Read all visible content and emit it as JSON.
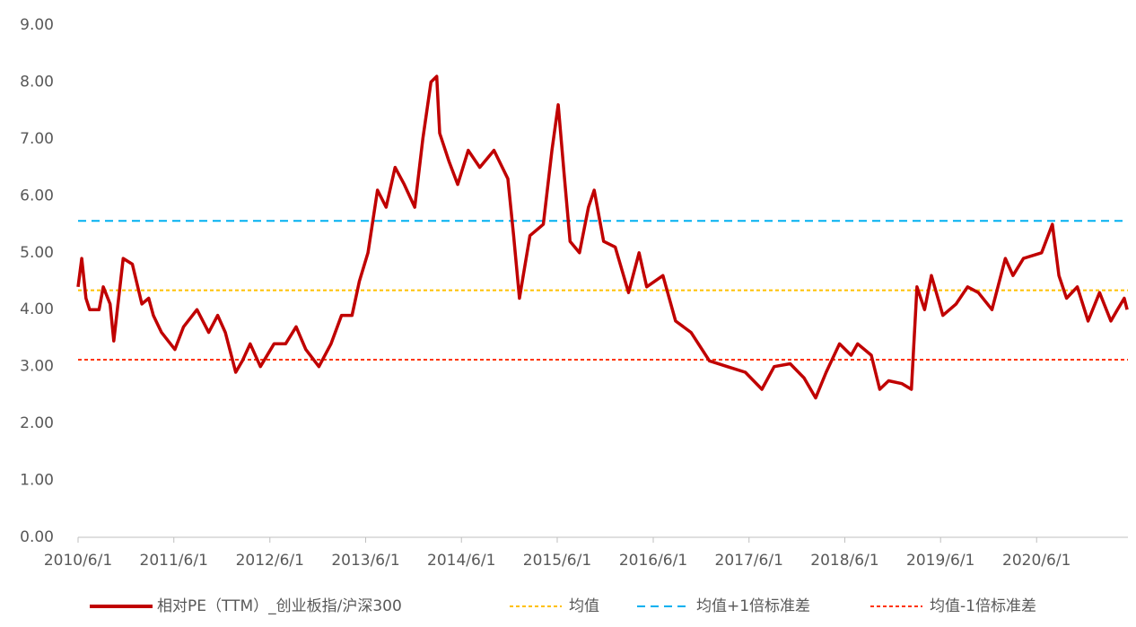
{
  "chart_data": {
    "type": "line",
    "series": [
      {
        "name": "相对PE（TTM）_创业板指/沪深300",
        "color": "#c00000",
        "x": [
          "2010/6/1",
          "2010/6/15",
          "2010/7/1",
          "2010/7/15",
          "2010/8/20",
          "2010/9/5",
          "2010/10/1",
          "2010/10/15",
          "2010/11/20",
          "2010/12/25",
          "2011/1/30",
          "2011/2/25",
          "2011/3/15",
          "2011/4/15",
          "2011/6/5",
          "2011/7/8",
          "2011/8/28",
          "2011/10/12",
          "2011/11/15",
          "2011/12/14",
          "2012/1/23",
          "2012/2/17",
          "2012/3/18",
          "2012/4/26",
          "2012/6/17",
          "2012/7/31",
          "2012/9/9",
          "2012/10/16",
          "2012/12/5",
          "2013/1/20",
          "2013/3/1",
          "2013/4/10",
          "2013/5/8",
          "2013/6/10",
          "2013/7/16",
          "2013/8/18",
          "2013/9/21",
          "2013/10/26",
          "2013/12/5",
          "2014/1/5",
          "2014/2/5",
          "2014/2/27",
          "2014/3/10",
          "2014/4/15",
          "2014/5/18",
          "2014/6/27",
          "2014/8/10",
          "2014/10/3",
          "2014/11/25",
          "2014/12/17",
          "2015/1/8",
          "2015/2/17",
          "2015/4/9",
          "2015/5/12",
          "2015/6/5",
          "2015/6/27",
          "2015/7/20",
          "2015/8/25",
          "2015/9/28",
          "2015/10/20",
          "2015/11/25",
          "2016/1/8",
          "2016/2/28",
          "2016/4/8",
          "2016/5/7",
          "2016/7/8",
          "2016/8/25",
          "2016/10/23",
          "2017/1/1",
          "2017/3/10",
          "2017/5/18",
          "2017/7/20",
          "2017/9/5",
          "2017/11/5",
          "2017/12/28",
          "2018/2/10",
          "2018/3/22",
          "2018/5/12",
          "2018/6/25",
          "2018/7/20",
          "2018/9/10",
          "2018/10/12",
          "2018/11/15",
          "2019/1/5",
          "2019/2/10",
          "2019/3/3",
          "2019/4/1",
          "2019/4/27",
          "2019/6/10",
          "2019/7/30",
          "2019/9/12",
          "2019/10/23",
          "2019/12/14",
          "2020/2/3",
          "2020/3/3",
          "2020/4/12",
          "2020/6/20",
          "2020/7/31",
          "2020/8/25",
          "2020/9/23",
          "2020/11/3",
          "2020/12/14",
          "2021/1/27",
          "2021/3/11",
          "2021/4/5",
          "2021/5/1",
          "2021/5/12"
        ],
        "values": [
          4.4,
          4.9,
          4.2,
          4.0,
          4.0,
          4.4,
          4.1,
          3.45,
          4.9,
          4.8,
          4.1,
          4.2,
          3.9,
          3.6,
          3.3,
          3.7,
          4.0,
          3.6,
          3.9,
          3.6,
          2.9,
          3.1,
          3.4,
          3.0,
          3.4,
          3.4,
          3.7,
          3.3,
          3.0,
          3.4,
          3.9,
          3.9,
          4.5,
          5.0,
          6.1,
          5.8,
          6.5,
          6.2,
          5.8,
          7.0,
          8.0,
          8.1,
          7.1,
          6.6,
          6.2,
          6.8,
          6.5,
          6.8,
          6.3,
          5.3,
          4.2,
          5.3,
          5.5,
          6.8,
          7.6,
          6.4,
          5.2,
          5.0,
          5.8,
          6.1,
          5.2,
          5.1,
          4.3,
          5.0,
          4.4,
          4.6,
          3.8,
          3.6,
          3.1,
          3.0,
          2.9,
          2.6,
          3.0,
          3.05,
          2.8,
          2.45,
          2.9,
          3.4,
          3.2,
          3.4,
          3.2,
          2.6,
          2.75,
          2.7,
          2.6,
          4.4,
          4.0,
          4.6,
          3.9,
          4.1,
          4.4,
          4.3,
          4.0,
          4.9,
          4.6,
          4.9,
          5.0,
          5.5,
          4.6,
          4.2,
          4.4,
          3.8,
          4.3,
          3.8,
          4.0,
          4.2,
          4.0
        ]
      }
    ],
    "reference_lines": [
      {
        "name": "均值",
        "value": 4.34,
        "color": "#ffc000"
      },
      {
        "name": "均值+1倍标准差",
        "value": 5.56,
        "color": "#00b0f0"
      },
      {
        "name": "均值-1倍标准差",
        "value": 3.12,
        "color": "#ff3300"
      }
    ],
    "xlim": [
      "2010/6/1",
      "2021/5/15"
    ],
    "xticks": [
      "2010/6/1",
      "2011/6/1",
      "2012/6/1",
      "2013/6/1",
      "2014/6/1",
      "2015/6/1",
      "2016/6/1",
      "2017/6/1",
      "2018/6/1",
      "2019/6/1",
      "2020/6/1"
    ],
    "ylim": [
      0,
      9
    ],
    "yticks": [
      {
        "value": 0,
        "label": "0.00"
      },
      {
        "value": 1,
        "label": "1.00"
      },
      {
        "value": 2,
        "label": "2.00"
      },
      {
        "value": 3,
        "label": "3.00"
      },
      {
        "value": 4,
        "label": "4.00"
      },
      {
        "value": 5,
        "label": "5.00"
      },
      {
        "value": 6,
        "label": "6.00"
      },
      {
        "value": 7,
        "label": "7.00"
      },
      {
        "value": 8,
        "label": "8.00"
      },
      {
        "value": 9,
        "label": "9.00"
      }
    ],
    "legend": "bottom"
  }
}
